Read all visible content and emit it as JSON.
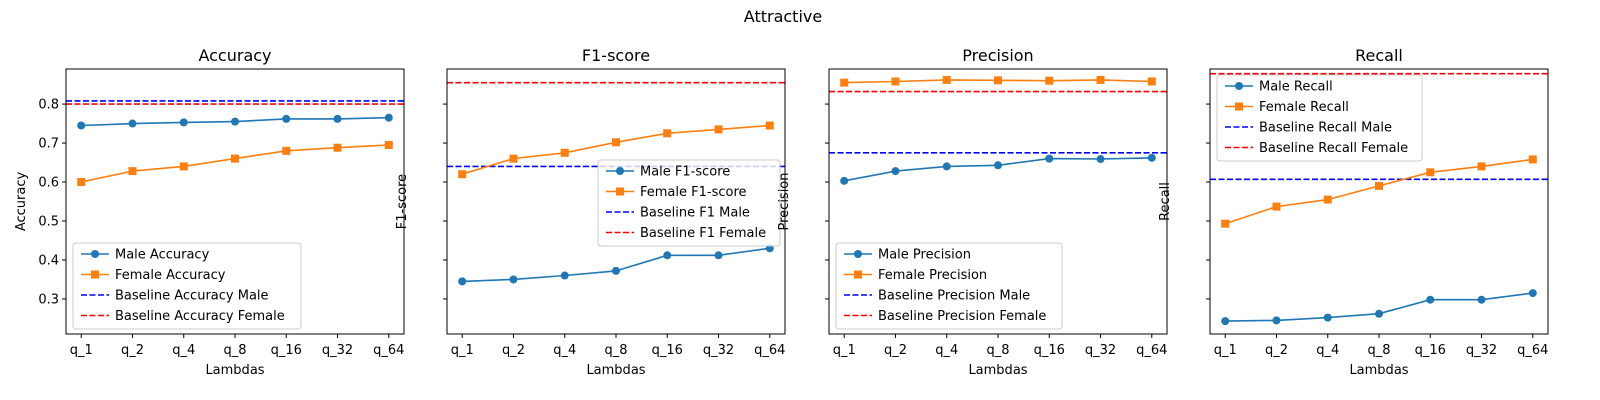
{
  "figure": {
    "suptitle": "Attractive"
  },
  "chart_data": [
    {
      "type": "line",
      "title": "Accuracy",
      "xlabel": "Lambdas",
      "ylabel": "Accuracy",
      "categories": [
        "q_1",
        "q_2",
        "q_4",
        "q_8",
        "q_16",
        "q_32",
        "q_64"
      ],
      "ylim": [
        0.21,
        0.89
      ],
      "yticks": [
        0.3,
        0.4,
        0.5,
        0.6,
        0.7,
        0.8
      ],
      "ytick_labels": [
        "0.3",
        "0.4",
        "0.5",
        "0.6",
        "0.7",
        "0.8"
      ],
      "series": [
        {
          "name": "Male Accuracy",
          "values": [
            0.745,
            0.75,
            0.753,
            0.755,
            0.762,
            0.762,
            0.765
          ]
        },
        {
          "name": "Female Accuracy",
          "values": [
            0.6,
            0.628,
            0.64,
            0.66,
            0.68,
            0.688,
            0.695
          ]
        }
      ],
      "baselines": [
        {
          "name": "Baseline Accuracy Male",
          "value": 0.808
        },
        {
          "name": "Baseline Accuracy Female",
          "value": 0.8
        }
      ],
      "legend": "lower-left"
    },
    {
      "type": "line",
      "title": "F1-score",
      "xlabel": "Lambdas",
      "ylabel": "F1-score",
      "categories": [
        "q_1",
        "q_2",
        "q_4",
        "q_8",
        "q_16",
        "q_32",
        "q_64"
      ],
      "ylim": [
        0.21,
        0.89
      ],
      "yticks": [
        0.3,
        0.4,
        0.5,
        0.6,
        0.7,
        0.8
      ],
      "ytick_labels": [
        "",
        "",
        "",
        "",
        "",
        ""
      ],
      "series": [
        {
          "name": "Male F1-score",
          "values": [
            0.345,
            0.35,
            0.36,
            0.372,
            0.412,
            0.412,
            0.43
          ]
        },
        {
          "name": "Female F1-score",
          "values": [
            0.62,
            0.66,
            0.675,
            0.702,
            0.725,
            0.735,
            0.745
          ]
        }
      ],
      "baselines": [
        {
          "name": "Baseline F1 Male",
          "value": 0.64
        },
        {
          "name": "Baseline F1 Female",
          "value": 0.855
        }
      ],
      "legend": "center-right"
    },
    {
      "type": "line",
      "title": "Precision",
      "xlabel": "Lambdas",
      "ylabel": "Precision",
      "categories": [
        "q_1",
        "q_2",
        "q_4",
        "q_8",
        "q_16",
        "q_32",
        "q_64"
      ],
      "ylim": [
        0.21,
        0.89
      ],
      "yticks": [
        0.3,
        0.4,
        0.5,
        0.6,
        0.7,
        0.8
      ],
      "ytick_labels": [
        "",
        "",
        "",
        "",
        "",
        ""
      ],
      "series": [
        {
          "name": "Male Precision",
          "values": [
            0.603,
            0.628,
            0.64,
            0.643,
            0.66,
            0.659,
            0.662
          ]
        },
        {
          "name": "Female Precision",
          "values": [
            0.855,
            0.858,
            0.862,
            0.861,
            0.86,
            0.862,
            0.858
          ]
        }
      ],
      "baselines": [
        {
          "name": "Baseline Precision Male",
          "value": 0.675
        },
        {
          "name": "Baseline Precision Female",
          "value": 0.832
        }
      ],
      "legend": "lower-left"
    },
    {
      "type": "line",
      "title": "Recall",
      "xlabel": "Lambdas",
      "ylabel": "Recall",
      "categories": [
        "q_1",
        "q_2",
        "q_4",
        "q_8",
        "q_16",
        "q_32",
        "q_64"
      ],
      "ylim": [
        0.21,
        0.89
      ],
      "yticks": [
        0.3,
        0.4,
        0.5,
        0.6,
        0.7,
        0.8
      ],
      "ytick_labels": [
        "",
        "",
        "",
        "",
        "",
        ""
      ],
      "series": [
        {
          "name": "Male Recall",
          "values": [
            0.243,
            0.245,
            0.252,
            0.262,
            0.298,
            0.298,
            0.315
          ]
        },
        {
          "name": "Female Recall",
          "values": [
            0.493,
            0.537,
            0.555,
            0.59,
            0.625,
            0.64,
            0.658
          ]
        }
      ],
      "baselines": [
        {
          "name": "Baseline Recall Male",
          "value": 0.607
        },
        {
          "name": "Baseline Recall Female",
          "value": 0.878
        }
      ],
      "legend": "upper-left"
    }
  ],
  "colors": {
    "male_series": "#1f77b4",
    "female_series": "#ff7f0e",
    "baseline_male": "#0000ff",
    "baseline_female": "#ff0000"
  },
  "markers": {
    "male": "circle",
    "female": "square"
  }
}
